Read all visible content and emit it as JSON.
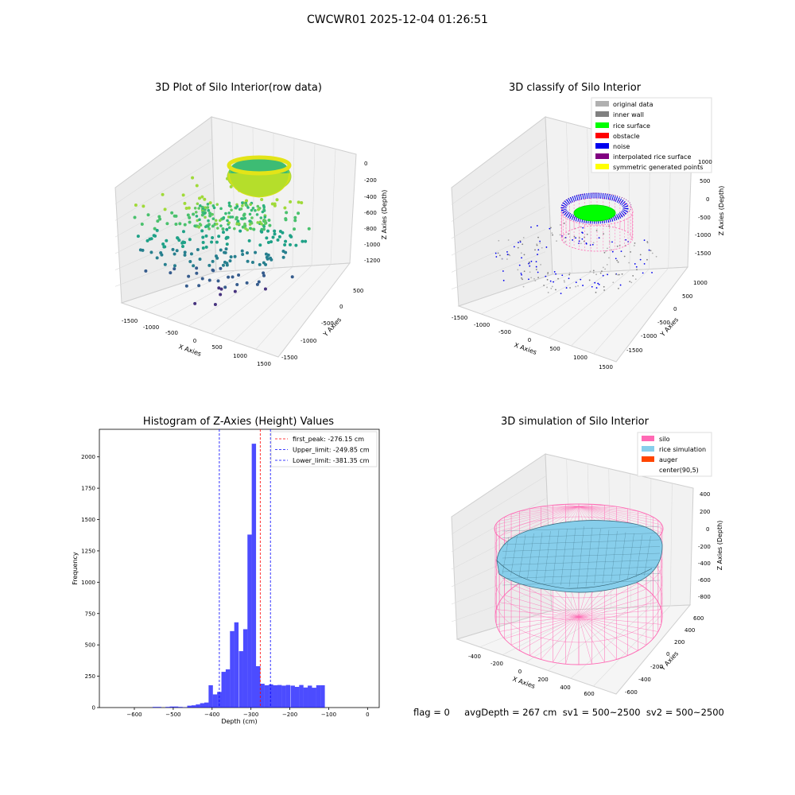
{
  "suptitle": "CWCWR01 2025-12-04 01:26:51",
  "panels": {
    "raw": {
      "title": "3D Plot of Silo Interior(row data)",
      "xlabel": "X Axies",
      "ylabel": "Y Axies",
      "zlabel": "Z Axies (Depth)",
      "xticks": [
        "-1500",
        "-1000",
        "-500",
        "0",
        "500",
        "1000",
        "1500"
      ],
      "yticks": [
        "500",
        "0",
        "-500",
        "-1000",
        "-1500"
      ],
      "zticks": [
        "0",
        "-200",
        "-400",
        "-600",
        "-800",
        "-1000",
        "-1200"
      ]
    },
    "classify": {
      "title": "3D classify of Silo Interior",
      "xlabel": "X Axies",
      "ylabel": "Y Axies",
      "zlabel": "Z Axies (Depth)",
      "xticks": [
        "-1500",
        "-1000",
        "-500",
        "0",
        "500",
        "1000",
        "1500"
      ],
      "yticks": [
        "1000",
        "500",
        "0",
        "-500",
        "-1000",
        "-1500"
      ],
      "zticks": [
        "1000",
        "500",
        "0",
        "-500",
        "-1000",
        "-1500"
      ],
      "legend": [
        {
          "label": "original data",
          "color": "#b0b0b0"
        },
        {
          "label": "inner wall",
          "color": "#808080"
        },
        {
          "label": "rice surface",
          "color": "#00ff00"
        },
        {
          "label": "obstacle",
          "color": "#ff0000"
        },
        {
          "label": "noise",
          "color": "#0000ee"
        },
        {
          "label": "interpolated rice surface",
          "color": "#800080"
        },
        {
          "label": "symmetric generated points",
          "color": "#ffff00"
        }
      ]
    },
    "simulation": {
      "title": "3D simulation of Silo Interior",
      "xlabel": "X Axies",
      "ylabel": "Y Axies",
      "zlabel": "Z Axies (Depth)",
      "xticks": [
        "-400",
        "-200",
        "0",
        "200",
        "400",
        "600"
      ],
      "yticks": [
        "600",
        "400",
        "200",
        "0",
        "-200",
        "-400",
        "-600"
      ],
      "zticks": [
        "400",
        "200",
        "0",
        "-200",
        "-400",
        "-600",
        "-800"
      ],
      "legend": [
        {
          "label": "silo",
          "color": "#ff69b4"
        },
        {
          "label": "rice simulation",
          "color": "#87ceeb"
        },
        {
          "label": "auger",
          "color": "#ff4500"
        },
        {
          "label": "center(90,5)",
          "color": ""
        }
      ]
    }
  },
  "chart_data": {
    "type": "bar",
    "title": "Histogram of Z-Axies (Height) Values",
    "xlabel": "Depth (cm)",
    "ylabel": "Frequency",
    "xlim": [
      -690,
      30
    ],
    "ylim": [
      0,
      2220
    ],
    "xticks": [
      -600,
      -500,
      -400,
      -300,
      -200,
      -100,
      0
    ],
    "yticks": [
      0,
      250,
      500,
      750,
      1000,
      1250,
      1500,
      1750,
      2000
    ],
    "bin_width": 11.1,
    "bin_starts": [
      -553,
      -542,
      -531,
      -520,
      -509,
      -498,
      -487,
      -476,
      -464,
      -453,
      -442,
      -431,
      -420,
      -409,
      -398,
      -387,
      -376,
      -365,
      -354,
      -343,
      -331,
      -320,
      -309,
      -298,
      -287,
      -276,
      -265,
      -254,
      -243,
      -232,
      -221,
      -210,
      -198,
      -187,
      -176,
      -165,
      -154,
      -143,
      -132,
      -121,
      -110
    ],
    "values": [
      5,
      5,
      0,
      5,
      8,
      8,
      5,
      2,
      15,
      18,
      25,
      35,
      40,
      178,
      105,
      125,
      285,
      305,
      610,
      680,
      450,
      625,
      1380,
      2105,
      330,
      190,
      178,
      185,
      178,
      180,
      175,
      180,
      175,
      165,
      180,
      160,
      175,
      158,
      178,
      178,
      0
    ],
    "color": "#0000ff",
    "lines": [
      {
        "name": "first_peak: -276.15 cm",
        "x": -276.15,
        "color": "#ff0000"
      },
      {
        "name": "Upper_limit: -249.85 cm",
        "x": -249.85,
        "color": "#0000ff"
      },
      {
        "name": "Lower_limit: -381.35 cm",
        "x": -381.35,
        "color": "#0000ff"
      }
    ]
  },
  "status": "flag = 0     avgDepth = 267 cm  sv1 = 500~2500  sv2 = 500~2500"
}
